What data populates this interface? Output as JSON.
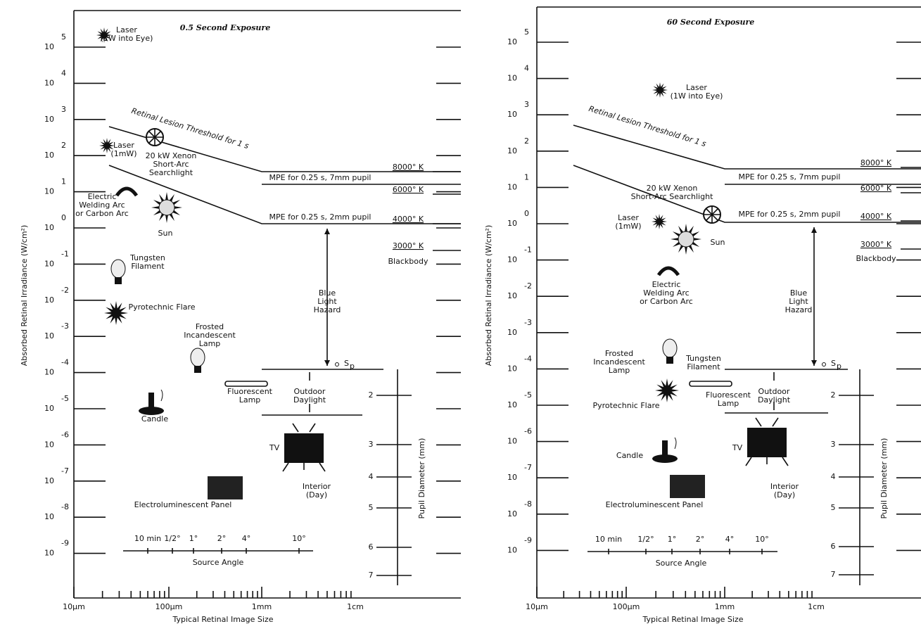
{
  "panels": [
    {
      "title": "0.5 Second Exposure",
      "y_axis_label": "Absorbed Retinal Irradiance (W/cm²)",
      "y_ticks": {
        "base": "10",
        "exponents": [
          "5",
          "4",
          "3",
          "2",
          "1",
          "0",
          "-1",
          "-2",
          "-3",
          "-4",
          "-5",
          "-6",
          "-7",
          "-8",
          "-9"
        ]
      },
      "x_axis_label": "Typical Retinal Image Size",
      "x_ticks": [
        "10μm",
        "100μm",
        "1mm",
        "1cm"
      ],
      "pupil_axis_label": "Pupil Diameter (mm)",
      "pupil_ticks": [
        "2",
        "3",
        "4",
        "5",
        "6",
        "7"
      ],
      "source_angle": {
        "label": "Source Angle",
        "ticks": [
          "10 min",
          "1/2°",
          "1°",
          "2°",
          "4°",
          "10°"
        ]
      },
      "labels": [
        {
          "lines": [
            "Laser",
            "(1W into Eye)"
          ]
        },
        {
          "lines": [
            "Laser",
            "(1mW)"
          ]
        },
        {
          "lines": [
            "20 kW Xenon",
            "Short-Arc",
            "Searchlight"
          ]
        },
        {
          "lines": [
            "Electric",
            "Welding Arc",
            "or Carbon Arc"
          ]
        },
        {
          "lines": [
            "Sun"
          ]
        },
        {
          "lines": [
            "Tungsten",
            "Filament"
          ]
        },
        {
          "lines": [
            "Pyrotechnic Flare"
          ]
        },
        {
          "lines": [
            "Frosted",
            "Incandescent",
            "Lamp"
          ]
        },
        {
          "lines": [
            "Candle"
          ]
        },
        {
          "lines": [
            "Fluorescent",
            "Lamp"
          ]
        },
        {
          "lines": [
            "Outdoor",
            "Daylight"
          ]
        },
        {
          "lines": [
            "TV"
          ]
        },
        {
          "lines": [
            "Interior",
            "(Day)"
          ]
        },
        {
          "lines": [
            "Electroluminescent Panel"
          ]
        },
        {
          "lines": [
            "Blue",
            "Light",
            "Hazard"
          ]
        }
      ],
      "temperatures": [
        "8000° K",
        "6000° K",
        "4000° K",
        "3000° K"
      ],
      "blackbody": "Blackbody",
      "curves": [
        "Retinal Lesion Threshold for 1 s",
        "MPE for 0.25 s, 7mm pupil",
        "MPE for 0.25 s, 2mm pupil"
      ],
      "sp_symbol": "S",
      "sp_subscript": "p"
    },
    {
      "title": "60 Second Exposure",
      "y_axis_label": "Absorbed Retinal Irradiance (W/cm²)",
      "y_ticks": {
        "base": "10",
        "exponents": [
          "5",
          "4",
          "3",
          "2",
          "1",
          "0",
          "-1",
          "-2",
          "-3",
          "-4",
          "-5",
          "-6",
          "-7",
          "-8",
          "-9"
        ]
      },
      "x_axis_label": "Typical Retinal Image Size",
      "x_ticks": [
        "10μm",
        "100μm",
        "1mm",
        "1cm"
      ],
      "pupil_axis_label": "Pupil Diameter (mm)",
      "pupil_ticks": [
        "2",
        "3",
        "4",
        "5",
        "6",
        "7"
      ],
      "source_angle": {
        "label": "Source Angle",
        "ticks": [
          "10 min",
          "1/2°",
          "1°",
          "2°",
          "4°",
          "10°"
        ]
      },
      "labels": [
        {
          "lines": [
            "Laser",
            "(1W into Eye)"
          ]
        },
        {
          "lines": [
            "Laser",
            "(1mW)"
          ]
        },
        {
          "lines": [
            "20 kW Xenon",
            "Short-Arc Searchlight"
          ]
        },
        {
          "lines": [
            "Electric",
            "Welding Arc",
            "or Carbon Arc"
          ]
        },
        {
          "lines": [
            "Sun"
          ]
        },
        {
          "lines": [
            "Tungsten",
            "Filament"
          ]
        },
        {
          "lines": [
            "Pyrotechnic Flare"
          ]
        },
        {
          "lines": [
            "Frosted",
            "Incandescent",
            "Lamp"
          ]
        },
        {
          "lines": [
            "Candle"
          ]
        },
        {
          "lines": [
            "Fluorescent",
            "Lamp"
          ]
        },
        {
          "lines": [
            "Outdoor",
            "Daylight"
          ]
        },
        {
          "lines": [
            "TV"
          ]
        },
        {
          "lines": [
            "Interior",
            "(Day)"
          ]
        },
        {
          "lines": [
            "Electroluminescent Panel"
          ]
        },
        {
          "lines": [
            "Blue",
            "Light",
            "Hazard"
          ]
        }
      ],
      "temperatures": [
        "8000° K",
        "6000° K",
        "4000° K",
        "3000° K"
      ],
      "blackbody": "Blackbody",
      "curves": [
        "Retinal Lesion Threshold for 1 s",
        "MPE for 0.25 s, 7mm pupil",
        "MPE for 0.25 s, 2mm pupil"
      ],
      "sp_symbol": "S",
      "sp_subscript": "p"
    }
  ]
}
